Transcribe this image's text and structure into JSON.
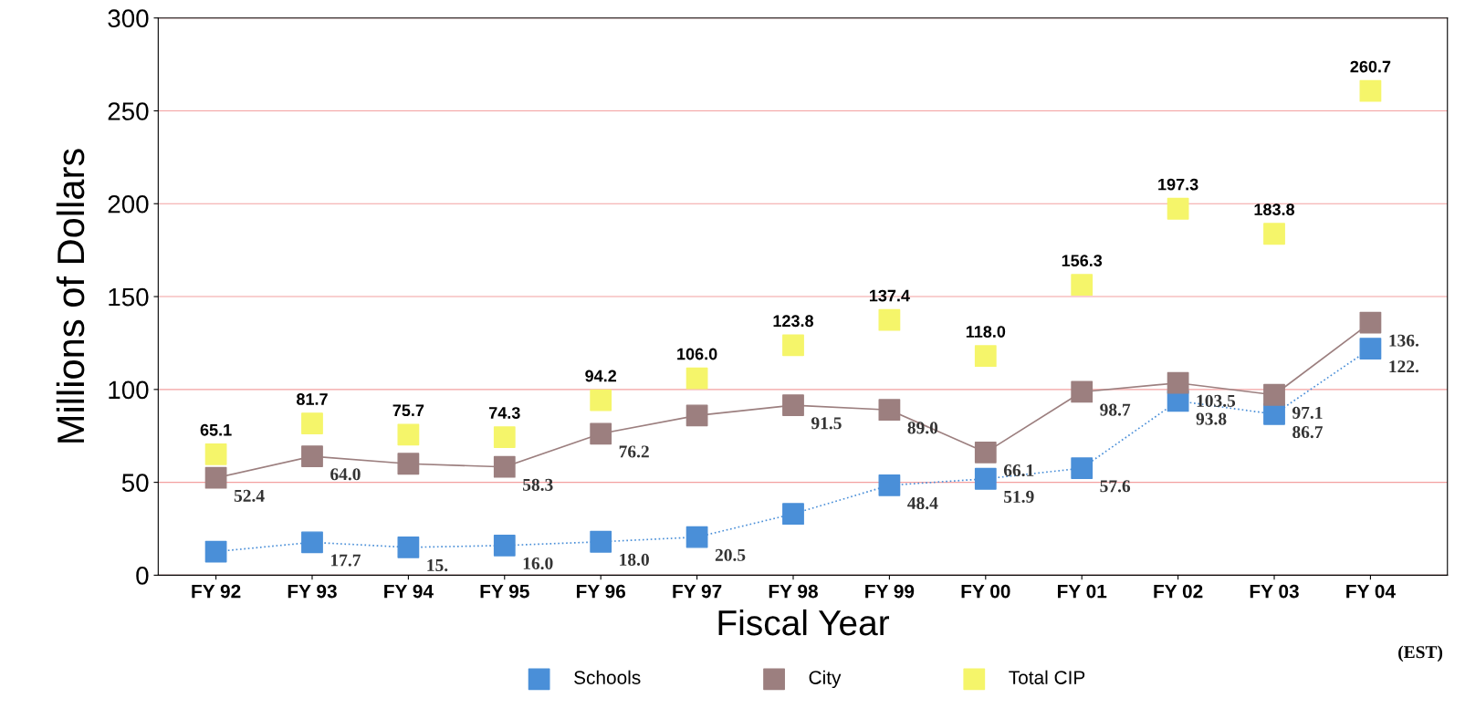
{
  "chart_data": {
    "type": "line",
    "xlabel": "Fiscal Year",
    "ylabel": "Millions of Dollars",
    "categories": [
      "FY 92",
      "FY 93",
      "FY 94",
      "FY 95",
      "FY 96",
      "FY 97",
      "FY 98",
      "FY 99",
      "FY 00",
      "FY 01",
      "FY 02",
      "FY 03",
      "FY 04"
    ],
    "series": [
      {
        "name": "Schools",
        "color": "#4a8fd8",
        "line_style": "dotted",
        "values": [
          12.7,
          17.7,
          15,
          16.0,
          18.0,
          20.5,
          33,
          48.4,
          51.9,
          57.6,
          93.8,
          86.7,
          122
        ],
        "value_labels": [
          null,
          "17.7",
          "15.",
          "16.0",
          "18.0",
          "20.5",
          null,
          "48.4",
          "51.9",
          "57.6",
          "93.8",
          "86.7",
          "122."
        ]
      },
      {
        "name": "City",
        "color": "#9c7f7f",
        "line_style": "solid",
        "values": [
          52.4,
          64.0,
          60,
          58.3,
          76.2,
          86,
          91.5,
          89.0,
          66.1,
          98.7,
          103.5,
          97.1,
          136
        ],
        "value_labels": [
          "52.4",
          "64.0",
          null,
          "58.3",
          "76.2",
          null,
          "91.5",
          "89.0",
          "66.1",
          "98.7",
          "103.5",
          "97.1",
          "136."
        ]
      },
      {
        "name": "Total CIP",
        "type": "scatter",
        "color": "#f5f56a",
        "values": [
          65.1,
          81.7,
          75.7,
          74.3,
          94.2,
          106.0,
          123.8,
          137.4,
          118.0,
          156.3,
          197.3,
          183.8,
          260.7
        ],
        "value_labels": [
          "65.1",
          "81.7",
          "75.7",
          "74.3",
          "94.2",
          "106.0",
          "123.8",
          "137.4",
          "118.0",
          "156.3",
          "197.3",
          "183.8",
          "260.7"
        ]
      }
    ],
    "ylim": [
      0,
      300
    ],
    "yticks": [
      0,
      50,
      100,
      150,
      200,
      250,
      300
    ],
    "grid": "y",
    "legend": "bottom",
    "marker": "square",
    "annotations": [
      "(EST)"
    ]
  }
}
